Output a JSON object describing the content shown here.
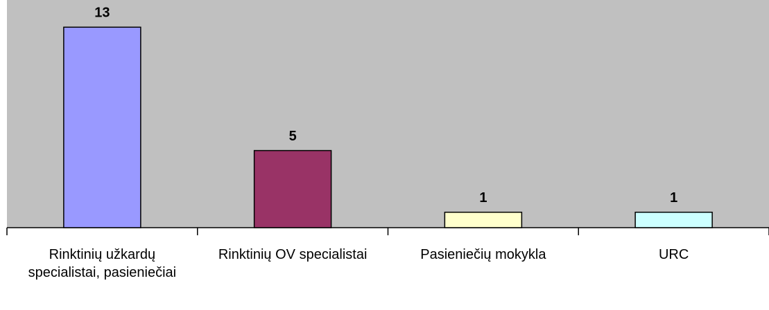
{
  "chart_data": {
    "type": "bar",
    "categories": [
      "Rinktinių užkardų specialistai, pasieniečiai",
      "Rinktinių OV specialistai",
      "Pasieniečių mokykla",
      "URC"
    ],
    "values": [
      13,
      5,
      1,
      1
    ],
    "colors": [
      "#9999ff",
      "#993366",
      "#ffffcc",
      "#ccffff"
    ],
    "ylim": [
      0,
      14
    ]
  }
}
